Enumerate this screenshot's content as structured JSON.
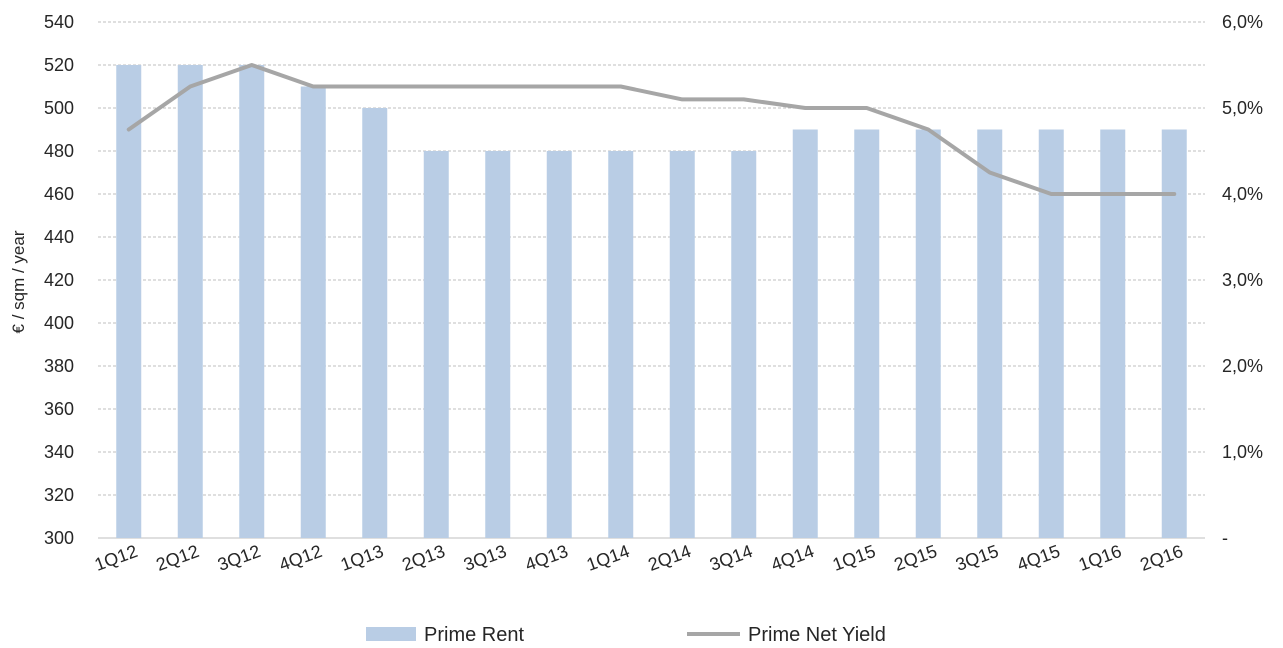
{
  "chart_data": {
    "type": "bar",
    "categories": [
      "1Q12",
      "2Q12",
      "3Q12",
      "4Q12",
      "1Q13",
      "2Q13",
      "3Q13",
      "4Q13",
      "1Q14",
      "2Q14",
      "3Q14",
      "4Q14",
      "1Q15",
      "2Q15",
      "3Q15",
      "4Q15",
      "1Q16",
      "2Q16"
    ],
    "series": [
      {
        "name": "Prime Rent",
        "type": "bar",
        "axis": "left",
        "color": "#b9cde5",
        "values": [
          520,
          520,
          520,
          510,
          500,
          480,
          480,
          480,
          480,
          480,
          480,
          490,
          490,
          490,
          490,
          490,
          490,
          490
        ]
      },
      {
        "name": "Prime Net Yield",
        "type": "line",
        "axis": "right",
        "color": "#a6a6a6",
        "values": [
          4.75,
          5.25,
          5.5,
          5.25,
          5.25,
          5.25,
          5.25,
          5.25,
          5.25,
          5.1,
          5.1,
          5.0,
          5.0,
          4.75,
          4.25,
          4.0,
          4.0,
          4.0
        ]
      }
    ],
    "ylabel": "€ / sqm / year",
    "ylim": [
      300,
      540
    ],
    "y_ticks": [
      "540",
      "520",
      "500",
      "480",
      "460",
      "440",
      "420",
      "400",
      "380",
      "360",
      "340",
      "320",
      "300"
    ],
    "y2lim": [
      0,
      6
    ],
    "y2_ticks": [
      "6,0%",
      "5,0%",
      "4,0%",
      "3,0%",
      "2,0%",
      "1,0%",
      "-"
    ],
    "grid": true,
    "legend_position": "bottom"
  }
}
